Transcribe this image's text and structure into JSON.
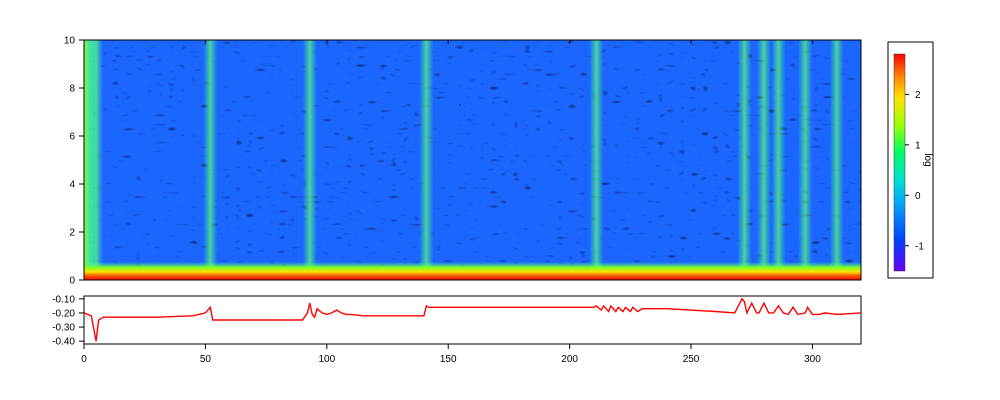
{
  "chart_data": [
    {
      "type": "heatmap",
      "title": "",
      "xlabel": "",
      "ylabel": "",
      "xlim": [
        0,
        320
      ],
      "ylim": [
        0,
        10
      ],
      "x_ticks": [
        0,
        50,
        100,
        150,
        200,
        250,
        300
      ],
      "y_ticks": [
        0,
        2,
        4,
        6,
        8,
        10
      ],
      "x_tick_labels": [
        "0",
        "50",
        "100",
        "150",
        "200",
        "250",
        "300"
      ],
      "y_tick_labels": [
        "0",
        "2",
        "4",
        "6",
        "8",
        "10"
      ],
      "colorbar": {
        "label": "log",
        "range": [
          -1.5,
          2.8
        ],
        "ticks": [
          -1,
          0,
          1,
          2
        ],
        "tick_labels": [
          "-1",
          "0",
          "1",
          "2"
        ],
        "colors": [
          "#6a00ff",
          "#0040ff",
          "#00c0ff",
          "#00ff80",
          "#80ff00",
          "#ffff00",
          "#ff8000",
          "#ff0000"
        ]
      },
      "vertical_streaks_x": [
        5,
        52,
        93,
        141,
        211,
        272,
        280,
        286,
        297,
        310
      ],
      "colors": {
        "background": "#1e5cff",
        "low": "#4a25d8",
        "streak": "#40ff90",
        "bottom_band": "#ff2000"
      },
      "grid": false
    },
    {
      "type": "line",
      "xlim": [
        0,
        320
      ],
      "ylim": [
        -0.42,
        -0.08
      ],
      "x_ticks": [
        0,
        50,
        100,
        150,
        200,
        250,
        300
      ],
      "x_tick_labels": [
        "0",
        "50",
        "100",
        "150",
        "200",
        "250",
        "300"
      ],
      "y_ticks": [
        -0.1,
        -0.2,
        -0.3,
        -0.4
      ],
      "y_tick_labels": [
        "-0.10",
        "-0.20",
        "-0.30",
        "-0.40"
      ],
      "series": [
        {
          "color": "#ff0000",
          "x": [
            0,
            3,
            5,
            6,
            8,
            15,
            30,
            45,
            50,
            52,
            53,
            60,
            80,
            90,
            92,
            93,
            94,
            95,
            96,
            98,
            100,
            102,
            104,
            106,
            108,
            110,
            115,
            120,
            130,
            140,
            141,
            142,
            150,
            170,
            190,
            200,
            210,
            211,
            213,
            214,
            216,
            217,
            219,
            220,
            222,
            223,
            225,
            226,
            228,
            230,
            240,
            250,
            260,
            268,
            271,
            272,
            273,
            275,
            277,
            278,
            280,
            282,
            284,
            286,
            288,
            290,
            292,
            294,
            297,
            298,
            300,
            303,
            305,
            310,
            320
          ],
          "y": [
            -0.2,
            -0.22,
            -0.4,
            -0.25,
            -0.23,
            -0.23,
            -0.23,
            -0.22,
            -0.2,
            -0.16,
            -0.25,
            -0.25,
            -0.25,
            -0.25,
            -0.2,
            -0.13,
            -0.21,
            -0.23,
            -0.17,
            -0.2,
            -0.21,
            -0.2,
            -0.18,
            -0.2,
            -0.21,
            -0.21,
            -0.22,
            -0.22,
            -0.22,
            -0.22,
            -0.15,
            -0.16,
            -0.16,
            -0.16,
            -0.16,
            -0.16,
            -0.16,
            -0.15,
            -0.18,
            -0.15,
            -0.19,
            -0.15,
            -0.19,
            -0.16,
            -0.19,
            -0.16,
            -0.19,
            -0.16,
            -0.19,
            -0.17,
            -0.17,
            -0.18,
            -0.19,
            -0.2,
            -0.1,
            -0.12,
            -0.2,
            -0.13,
            -0.2,
            -0.2,
            -0.13,
            -0.2,
            -0.2,
            -0.15,
            -0.2,
            -0.21,
            -0.16,
            -0.21,
            -0.2,
            -0.16,
            -0.21,
            -0.21,
            -0.2,
            -0.21,
            -0.2
          ]
        }
      ]
    }
  ]
}
